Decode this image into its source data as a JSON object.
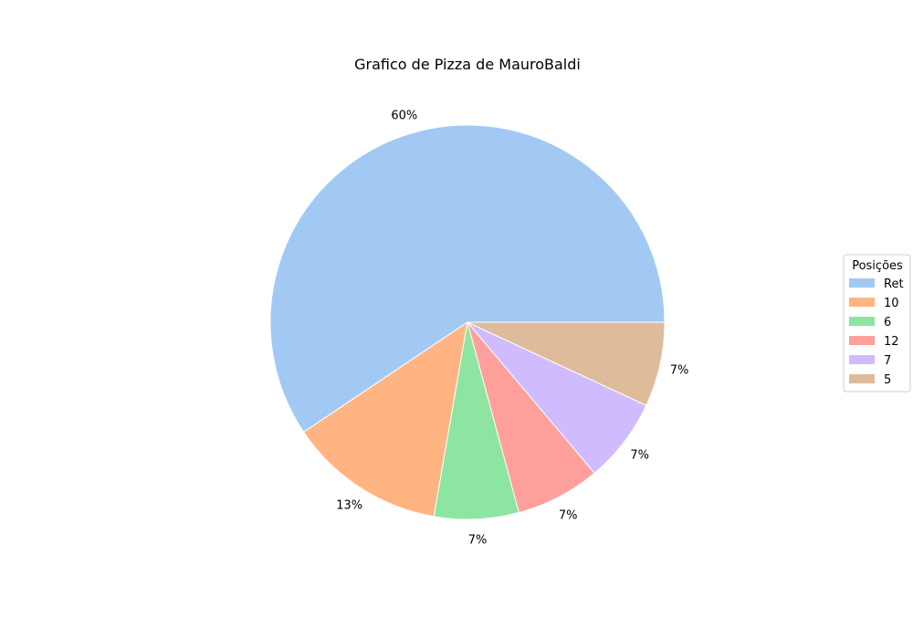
{
  "chart_data": {
    "type": "pie",
    "title": "Grafico de Pizza de MauroBaldi",
    "legend_title": "Posições",
    "legend_position": "right",
    "labels": [
      "Ret",
      "10",
      "6",
      "12",
      "7",
      "5"
    ],
    "values": [
      60,
      13,
      7,
      7,
      7,
      7
    ],
    "value_labels": [
      "60%",
      "13%",
      "7%",
      "7%",
      "7%",
      "7%"
    ],
    "colors": [
      "#a1c9f4",
      "#ffb482",
      "#8de5a1",
      "#ff9f9b",
      "#d0bbff",
      "#debb9b"
    ],
    "start_angle": "0 degrees (3 o'clock)",
    "direction": "counterclockwise"
  }
}
